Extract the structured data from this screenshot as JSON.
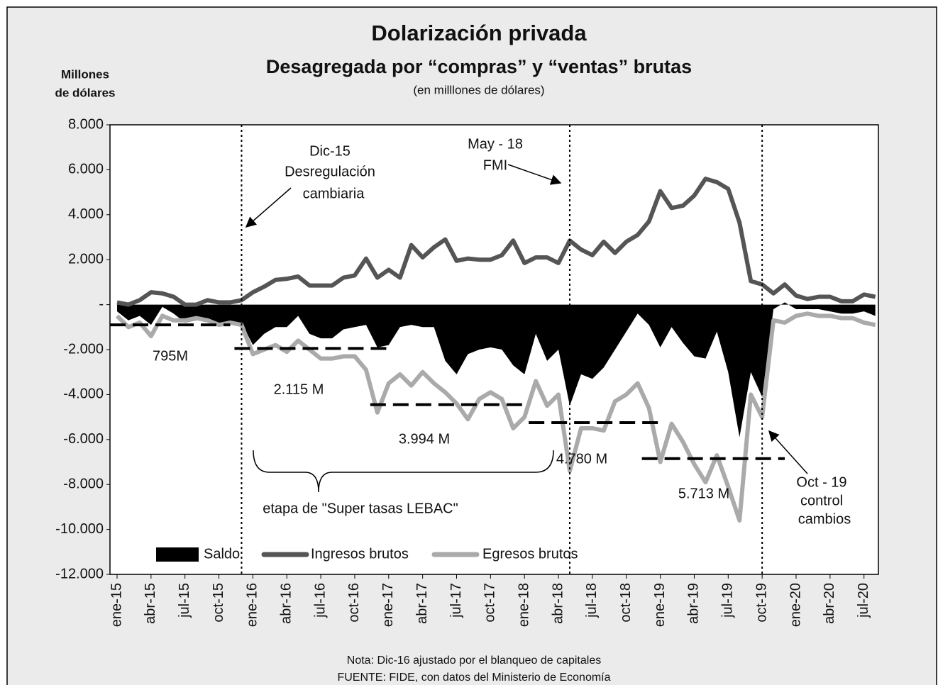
{
  "chart_data": {
    "type": "line",
    "title": "Dolarización privada",
    "subtitle": "Desagregada por “compras” y “ventas” brutas",
    "unit_note": "(en milllones de dólares)",
    "y_label": [
      "Millones",
      "de dólares"
    ],
    "categories": [
      "ene-15",
      null,
      null,
      "abr-15",
      null,
      null,
      "jul-15",
      null,
      null,
      "oct-15",
      null,
      null,
      "ene-16",
      null,
      null,
      "abr-16",
      null,
      null,
      "jul-16",
      null,
      null,
      "oct-16",
      null,
      null,
      "ene-17",
      null,
      null,
      "abr-17",
      null,
      null,
      "jul-17",
      null,
      null,
      "oct-17",
      null,
      null,
      "ene-18",
      null,
      null,
      "abr-18",
      null,
      null,
      "jul-18",
      null,
      null,
      "oct-18",
      null,
      null,
      "ene-19",
      null,
      null,
      "abr-19",
      null,
      null,
      "jul-19",
      null,
      null,
      "oct-19",
      null,
      null,
      "ene-20",
      null,
      null,
      "abr-20",
      null,
      null,
      "jul-20",
      null
    ],
    "series": [
      {
        "name": "Saldo",
        "color": "#000000",
        "style": "area",
        "values": [
          -300,
          -700,
          -500,
          -900,
          -100,
          -400,
          -800,
          -700,
          -600,
          -800,
          -800,
          -800,
          -1800,
          -1300,
          -1000,
          -1000,
          -500,
          -1300,
          -1500,
          -1500,
          -1100,
          -1000,
          -900,
          -1900,
          -1800,
          -1000,
          -900,
          -1000,
          -1000,
          -2500,
          -3100,
          -2200,
          -2000,
          -1900,
          -2000,
          -2700,
          -3100,
          -1300,
          -2500,
          -2000,
          -4500,
          -3100,
          -3300,
          -2800,
          -2000,
          -1200,
          -400,
          -900,
          -1900,
          -1000,
          -1700,
          -2300,
          -2400,
          -1200,
          -3000,
          -5900,
          -3000,
          -4100,
          -200,
          100,
          -200,
          -200,
          -200,
          -300,
          -400,
          -400,
          -300,
          -500
        ]
      },
      {
        "name": "Ingresos brutos",
        "color": "#555555",
        "style": "line",
        "values": [
          100,
          0,
          200,
          550,
          500,
          350,
          0,
          0,
          200,
          100,
          100,
          200,
          550,
          800,
          1100,
          1150,
          1250,
          850,
          850,
          850,
          1200,
          1300,
          2050,
          1200,
          1550,
          1200,
          2650,
          2100,
          2550,
          2900,
          1950,
          2050,
          2000,
          2000,
          2200,
          2850,
          1850,
          2100,
          2100,
          1850,
          2850,
          2450,
          2200,
          2800,
          2300,
          2800,
          3100,
          3700,
          5050,
          4300,
          4400,
          4850,
          5600,
          5450,
          5150,
          3650,
          1050,
          900,
          500,
          900,
          400,
          250,
          350,
          350,
          150,
          150,
          450,
          350
        ]
      },
      {
        "name": "Egresos brutos",
        "color": "#aaaaaa",
        "style": "line",
        "values": [
          -500,
          -1000,
          -800,
          -1400,
          -500,
          -700,
          -700,
          -600,
          -700,
          -900,
          -800,
          -900,
          -2200,
          -2000,
          -1800,
          -2100,
          -1600,
          -2000,
          -2400,
          -2400,
          -2300,
          -2300,
          -2900,
          -4800,
          -3500,
          -3100,
          -3600,
          -3000,
          -3500,
          -3900,
          -4400,
          -5100,
          -4200,
          -3900,
          -4200,
          -5500,
          -5000,
          -3400,
          -4500,
          -4000,
          -7400,
          -5500,
          -5500,
          -5600,
          -4300,
          -4000,
          -3500,
          -4600,
          -7000,
          -5300,
          -6100,
          -7100,
          -7900,
          -6700,
          -8100,
          -9600,
          -4000,
          -5000,
          -700,
          -800,
          -500,
          -400,
          -500,
          -500,
          -600,
          -600,
          -800,
          -900
        ]
      }
    ],
    "ylim": [
      -12000,
      8000
    ],
    "yticks": [
      {
        "value": -12000,
        "label": "-12.000"
      },
      {
        "value": -10000,
        "label": "-10.000"
      },
      {
        "value": -8000,
        "label": "-8.000"
      },
      {
        "value": -6000,
        "label": "-6.000"
      },
      {
        "value": -4000,
        "label": "-4.000"
      },
      {
        "value": -2000,
        "label": "-2.000"
      },
      {
        "value": 0,
        "label": "-"
      },
      {
        "value": 2000,
        "label": "2.000"
      },
      {
        "value": 4000,
        "label": "4.000"
      },
      {
        "value": 6000,
        "label": "6.000"
      },
      {
        "value": 8000,
        "label": "8.000"
      }
    ],
    "average_lines": [
      {
        "value": -900,
        "x": [
          0,
          10
        ]
      },
      {
        "value": -1950,
        "x": [
          11,
          24
        ]
      },
      {
        "value": -4450,
        "x": [
          23,
          36
        ]
      },
      {
        "value": -5250,
        "x": [
          37,
          48
        ]
      },
      {
        "value": -6850,
        "x": [
          47,
          59
        ]
      }
    ],
    "event_lines": [
      11,
      40,
      57
    ],
    "annotations": [
      "Dic-15",
      "Desregulación",
      "cambiaria",
      "May - 18",
      "FMI",
      "Oct  - 19",
      "control",
      "cambios",
      "etapa de \"Super tasas LEBAC\"",
      "795M",
      "2.115 M",
      "3.994 M",
      "4.780 M",
      "5.713 M"
    ],
    "notes": [
      "Nota: Dic-16 ajustado por el blanqueo de capitales",
      "FUENTE: FIDE, con datos del Ministerio de Economía"
    ]
  }
}
